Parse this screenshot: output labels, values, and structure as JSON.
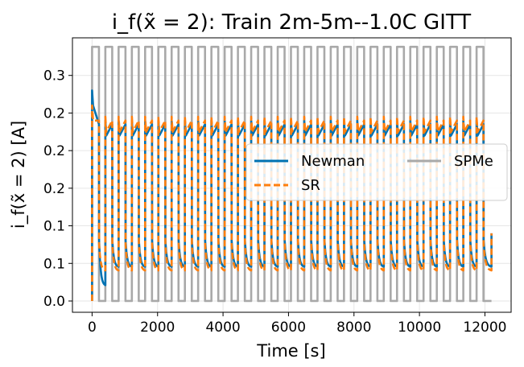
{
  "chart_data": {
    "type": "line",
    "title": "i_f(x̃ = 2): Train 2m-5m--1.0C GITT",
    "xlabel": "Time [s]",
    "ylabel": "i_f(x̃ = 2) [A]",
    "xlim": [
      -600,
      12800
    ],
    "ylim": [
      -0.015,
      0.35
    ],
    "x_ticks": [
      0,
      2000,
      4000,
      6000,
      8000,
      10000,
      12000
    ],
    "x_tick_labels": [
      "0",
      "2000",
      "4000",
      "6000",
      "8000",
      "10000",
      "12000"
    ],
    "y_ticks": [
      0.0,
      0.1,
      0.2,
      0.3
    ],
    "y_tick_labels": [
      "0.0",
      "0.1",
      "0.2",
      "0.3"
    ],
    "extra_tick_labels": [
      "0.1",
      "0.2"
    ],
    "grid": true,
    "legend_position": "center-right",
    "pulse": {
      "first_pulse_start": 0,
      "pulse_duration": 210,
      "period": 405,
      "count": 30,
      "last_pulse_end": 12200
    },
    "series": [
      {
        "name": "Newman",
        "color": "#0072b2",
        "dash": "solid",
        "first_peak": 0.28,
        "pulse_level": 0.24,
        "relax_start": 0.08,
        "relax_end": 0.045,
        "first_relax_end": 0.02
      },
      {
        "name": "SR",
        "color": "#ff7f0e",
        "dash": "dashed",
        "first_peak": 0.26,
        "pulse_level": 0.245,
        "relax_start": 0.075,
        "relax_end": 0.04,
        "first_relax_end": 0.04
      },
      {
        "name": "SPMe",
        "color": "#a9a9a9",
        "dash": "solid",
        "pulse_level": 0.338,
        "relax_level": 0.0
      }
    ]
  }
}
